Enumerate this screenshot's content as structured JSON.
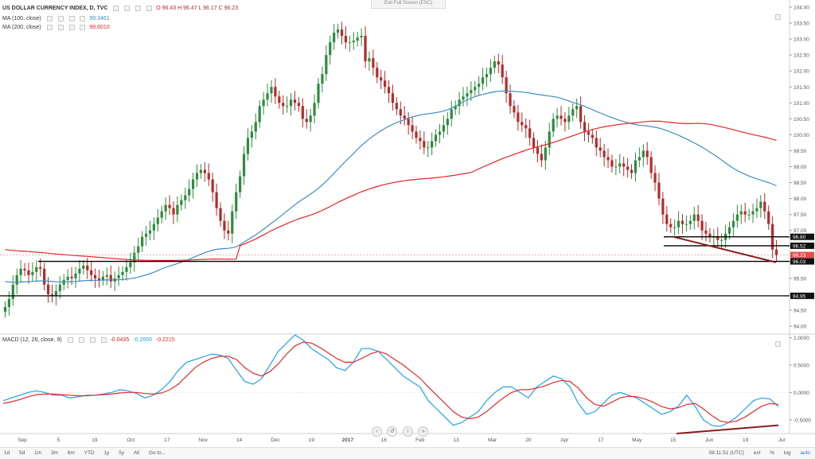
{
  "header": {
    "symbol": "US DOLLAR CURRENCY INDEX, D, TVC",
    "ohlc": "O 96.43  H 96.47  L 96.17  C 96.23",
    "ma100_label": "MA (100, close)",
    "ma100_value": "99.3461",
    "ma200_label": "MA (200, close)",
    "ma200_value": "99.6010",
    "fullscreen": "Exit Full Screen (ESC)"
  },
  "macd_legend": {
    "label": "MACD (12, 26, close, 9)",
    "hist": "-0.0435",
    "macd": "-0.2650",
    "signal": "-0.2215"
  },
  "bottom_bar": {
    "ranges": [
      "1d",
      "5d",
      "1m",
      "3m",
      "6m",
      "YTD",
      "1y",
      "5y",
      "All",
      "Go to..."
    ],
    "time": "08:11:51 (UTC)",
    "ext": "ext",
    "pct": "%",
    "log": "log",
    "auto": "auto"
  },
  "colors": {
    "up": "#2e8b3e",
    "down": "#b52a2a",
    "ma100": "#3d8fc3",
    "ma200": "#e82323",
    "macd": "#1ea3e6",
    "signal": "#e62a2a",
    "trend": "#8b1a1a"
  },
  "chart_data": [
    {
      "type": "candlestick",
      "title": "US DOLLAR CURRENCY INDEX, D, TVC",
      "ylim": [
        93.75,
        104.1
      ],
      "y_ticks": [
        94.0,
        94.5,
        95.0,
        95.5,
        96.0,
        96.5,
        97.0,
        97.5,
        98.0,
        98.5,
        99.0,
        99.5,
        100.0,
        100.5,
        101.0,
        101.5,
        102.0,
        102.5,
        103.0,
        103.5,
        104.0
      ],
      "x_tick_labels": [
        "Sep",
        "5",
        "19",
        "Oct",
        "17",
        "Nov",
        "14",
        "Dec",
        "19",
        "2017",
        "16",
        "Feb",
        "13",
        "Mar",
        "20",
        "Apr",
        "17",
        "May",
        "15",
        "Jun",
        "19",
        "Jul"
      ],
      "closes": [
        94.6,
        94.85,
        95.3,
        95.6,
        95.8,
        95.75,
        95.6,
        95.7,
        95.85,
        95.8,
        95.3,
        95.0,
        94.95,
        95.1,
        95.3,
        95.45,
        95.55,
        95.5,
        95.65,
        95.8,
        95.9,
        95.75,
        95.6,
        95.5,
        95.45,
        95.55,
        95.6,
        95.4,
        95.5,
        95.6,
        95.7,
        95.85,
        96.0,
        96.3,
        96.5,
        96.8,
        96.9,
        97.0,
        97.2,
        97.4,
        97.6,
        97.8,
        97.7,
        97.5,
        97.8,
        97.95,
        98.1,
        98.3,
        98.6,
        98.8,
        98.9,
        98.8,
        98.6,
        98.2,
        97.7,
        97.3,
        97.0,
        96.9,
        97.6,
        98.2,
        98.7,
        99.4,
        99.9,
        100.1,
        100.4,
        100.9,
        101.1,
        101.3,
        101.5,
        101.2,
        101.0,
        100.9,
        100.9,
        101.1,
        101.0,
        100.9,
        100.5,
        100.4,
        100.6,
        101.0,
        101.6,
        101.9,
        102.5,
        102.9,
        103.2,
        103.3,
        103.1,
        102.9,
        102.9,
        102.95,
        103.05,
        103.1,
        102.3,
        102.4,
        102.1,
        101.8,
        101.7,
        101.5,
        101.3,
        101.0,
        100.8,
        100.6,
        100.5,
        100.3,
        100.1,
        99.9,
        99.8,
        99.6,
        99.6,
        99.8,
        100.0,
        100.1,
        100.3,
        100.5,
        100.8,
        100.9,
        101.1,
        101.2,
        101.3,
        101.4,
        101.5,
        101.6,
        101.8,
        101.9,
        102.1,
        102.3,
        102.2,
        101.8,
        101.3,
        100.9,
        100.7,
        100.4,
        100.3,
        100.2,
        99.9,
        99.6,
        99.4,
        99.2,
        99.6,
        100.1,
        100.5,
        100.6,
        100.5,
        100.4,
        100.6,
        100.8,
        100.9,
        100.4,
        100.1,
        100.0,
        99.9,
        99.6,
        99.5,
        99.3,
        99.2,
        99.0,
        99.0,
        99.1,
        99.0,
        98.9,
        98.8,
        99.2,
        99.3,
        99.5,
        99.3,
        98.8,
        98.5,
        98.0,
        97.5,
        97.2,
        97.1,
        97.1,
        97.3,
        97.2,
        97.2,
        97.3,
        97.5,
        97.3,
        97.0,
        96.9,
        96.8,
        96.8,
        96.7,
        96.7,
        96.9,
        97.1,
        97.3,
        97.5,
        97.6,
        97.5,
        97.5,
        97.6,
        97.7,
        97.9,
        97.6,
        97.2,
        96.4,
        96.23
      ],
      "annotations": [
        {
          "type": "hline",
          "y": 96.8,
          "label": "96.80"
        },
        {
          "type": "hline",
          "y": 96.52,
          "label": "96.52"
        },
        {
          "type": "hline",
          "y": 96.03,
          "label": "96.03"
        },
        {
          "type": "hline",
          "y": 94.95,
          "label": "94.95"
        },
        {
          "type": "last_price",
          "y": 96.23,
          "label": "96.23"
        },
        {
          "type": "trendline",
          "from": {
            "x": "May 15",
            "y": 96.8
          },
          "to": {
            "x": "Jun 27",
            "y": 96.0
          }
        }
      ],
      "series": [
        {
          "name": "MA (100, close)",
          "last": 99.3461
        },
        {
          "name": "MA (200, close)",
          "last": 99.601
        }
      ]
    },
    {
      "type": "line",
      "title": "MACD (12, 26, close, 9)",
      "ylim": [
        -0.75,
        1.05
      ],
      "y_ticks": [
        1.0,
        0.5,
        0.0,
        -0.5
      ],
      "y_tick_labels": [
        "1.0000",
        "0.5000",
        "0.0000",
        "-0.5000"
      ],
      "series": [
        {
          "name": "MACD",
          "values": [
            -0.15,
            -0.1,
            -0.05,
            0.0,
            0.03,
            0.0,
            -0.05,
            -0.05,
            -0.1,
            -0.08,
            -0.05,
            -0.05,
            -0.03,
            0.0,
            0.05,
            0.03,
            -0.02,
            -0.1,
            -0.05,
            0.05,
            0.2,
            0.4,
            0.55,
            0.6,
            0.65,
            0.7,
            0.68,
            0.62,
            0.4,
            0.2,
            0.15,
            0.25,
            0.5,
            0.75,
            0.9,
            1.05,
            0.95,
            0.8,
            0.7,
            0.6,
            0.45,
            0.4,
            0.55,
            0.8,
            0.8,
            0.75,
            0.6,
            0.45,
            0.3,
            0.2,
            0.1,
            -0.15,
            -0.3,
            -0.45,
            -0.6,
            -0.55,
            -0.45,
            -0.35,
            -0.15,
            0.0,
            0.1,
            0.1,
            0.0,
            -0.1,
            0.1,
            0.2,
            0.3,
            0.25,
            0.1,
            -0.2,
            -0.4,
            -0.35,
            -0.2,
            -0.05,
            0.0,
            -0.05,
            -0.1,
            -0.2,
            -0.3,
            -0.4,
            -0.35,
            -0.25,
            -0.05,
            -0.25,
            -0.5,
            -0.6,
            -0.62,
            -0.55,
            -0.45,
            -0.3,
            -0.15,
            -0.1,
            -0.12,
            -0.26
          ]
        },
        {
          "name": "Signal",
          "values": [
            -0.2,
            -0.17,
            -0.13,
            -0.08,
            -0.04,
            -0.03,
            -0.03,
            -0.04,
            -0.05,
            -0.06,
            -0.06,
            -0.05,
            -0.04,
            -0.03,
            -0.01,
            0.0,
            0.0,
            -0.02,
            -0.03,
            -0.01,
            0.05,
            0.15,
            0.3,
            0.45,
            0.55,
            0.62,
            0.66,
            0.66,
            0.6,
            0.45,
            0.35,
            0.3,
            0.38,
            0.52,
            0.7,
            0.85,
            0.92,
            0.9,
            0.82,
            0.72,
            0.62,
            0.55,
            0.55,
            0.62,
            0.7,
            0.75,
            0.7,
            0.6,
            0.5,
            0.38,
            0.26,
            0.1,
            -0.05,
            -0.2,
            -0.35,
            -0.45,
            -0.48,
            -0.45,
            -0.35,
            -0.22,
            -0.1,
            0.0,
            0.05,
            0.05,
            0.08,
            0.12,
            0.18,
            0.22,
            0.2,
            0.08,
            -0.1,
            -0.22,
            -0.25,
            -0.18,
            -0.1,
            -0.07,
            -0.08,
            -0.12,
            -0.18,
            -0.26,
            -0.3,
            -0.28,
            -0.22,
            -0.2,
            -0.3,
            -0.42,
            -0.52,
            -0.55,
            -0.52,
            -0.45,
            -0.35,
            -0.25,
            -0.2,
            -0.22
          ]
        }
      ],
      "annotations": [
        {
          "type": "trendline",
          "from": {
            "x": "May 28",
            "y": -0.75
          },
          "to": {
            "x": "Jul 1",
            "y": -0.6
          }
        }
      ]
    }
  ]
}
